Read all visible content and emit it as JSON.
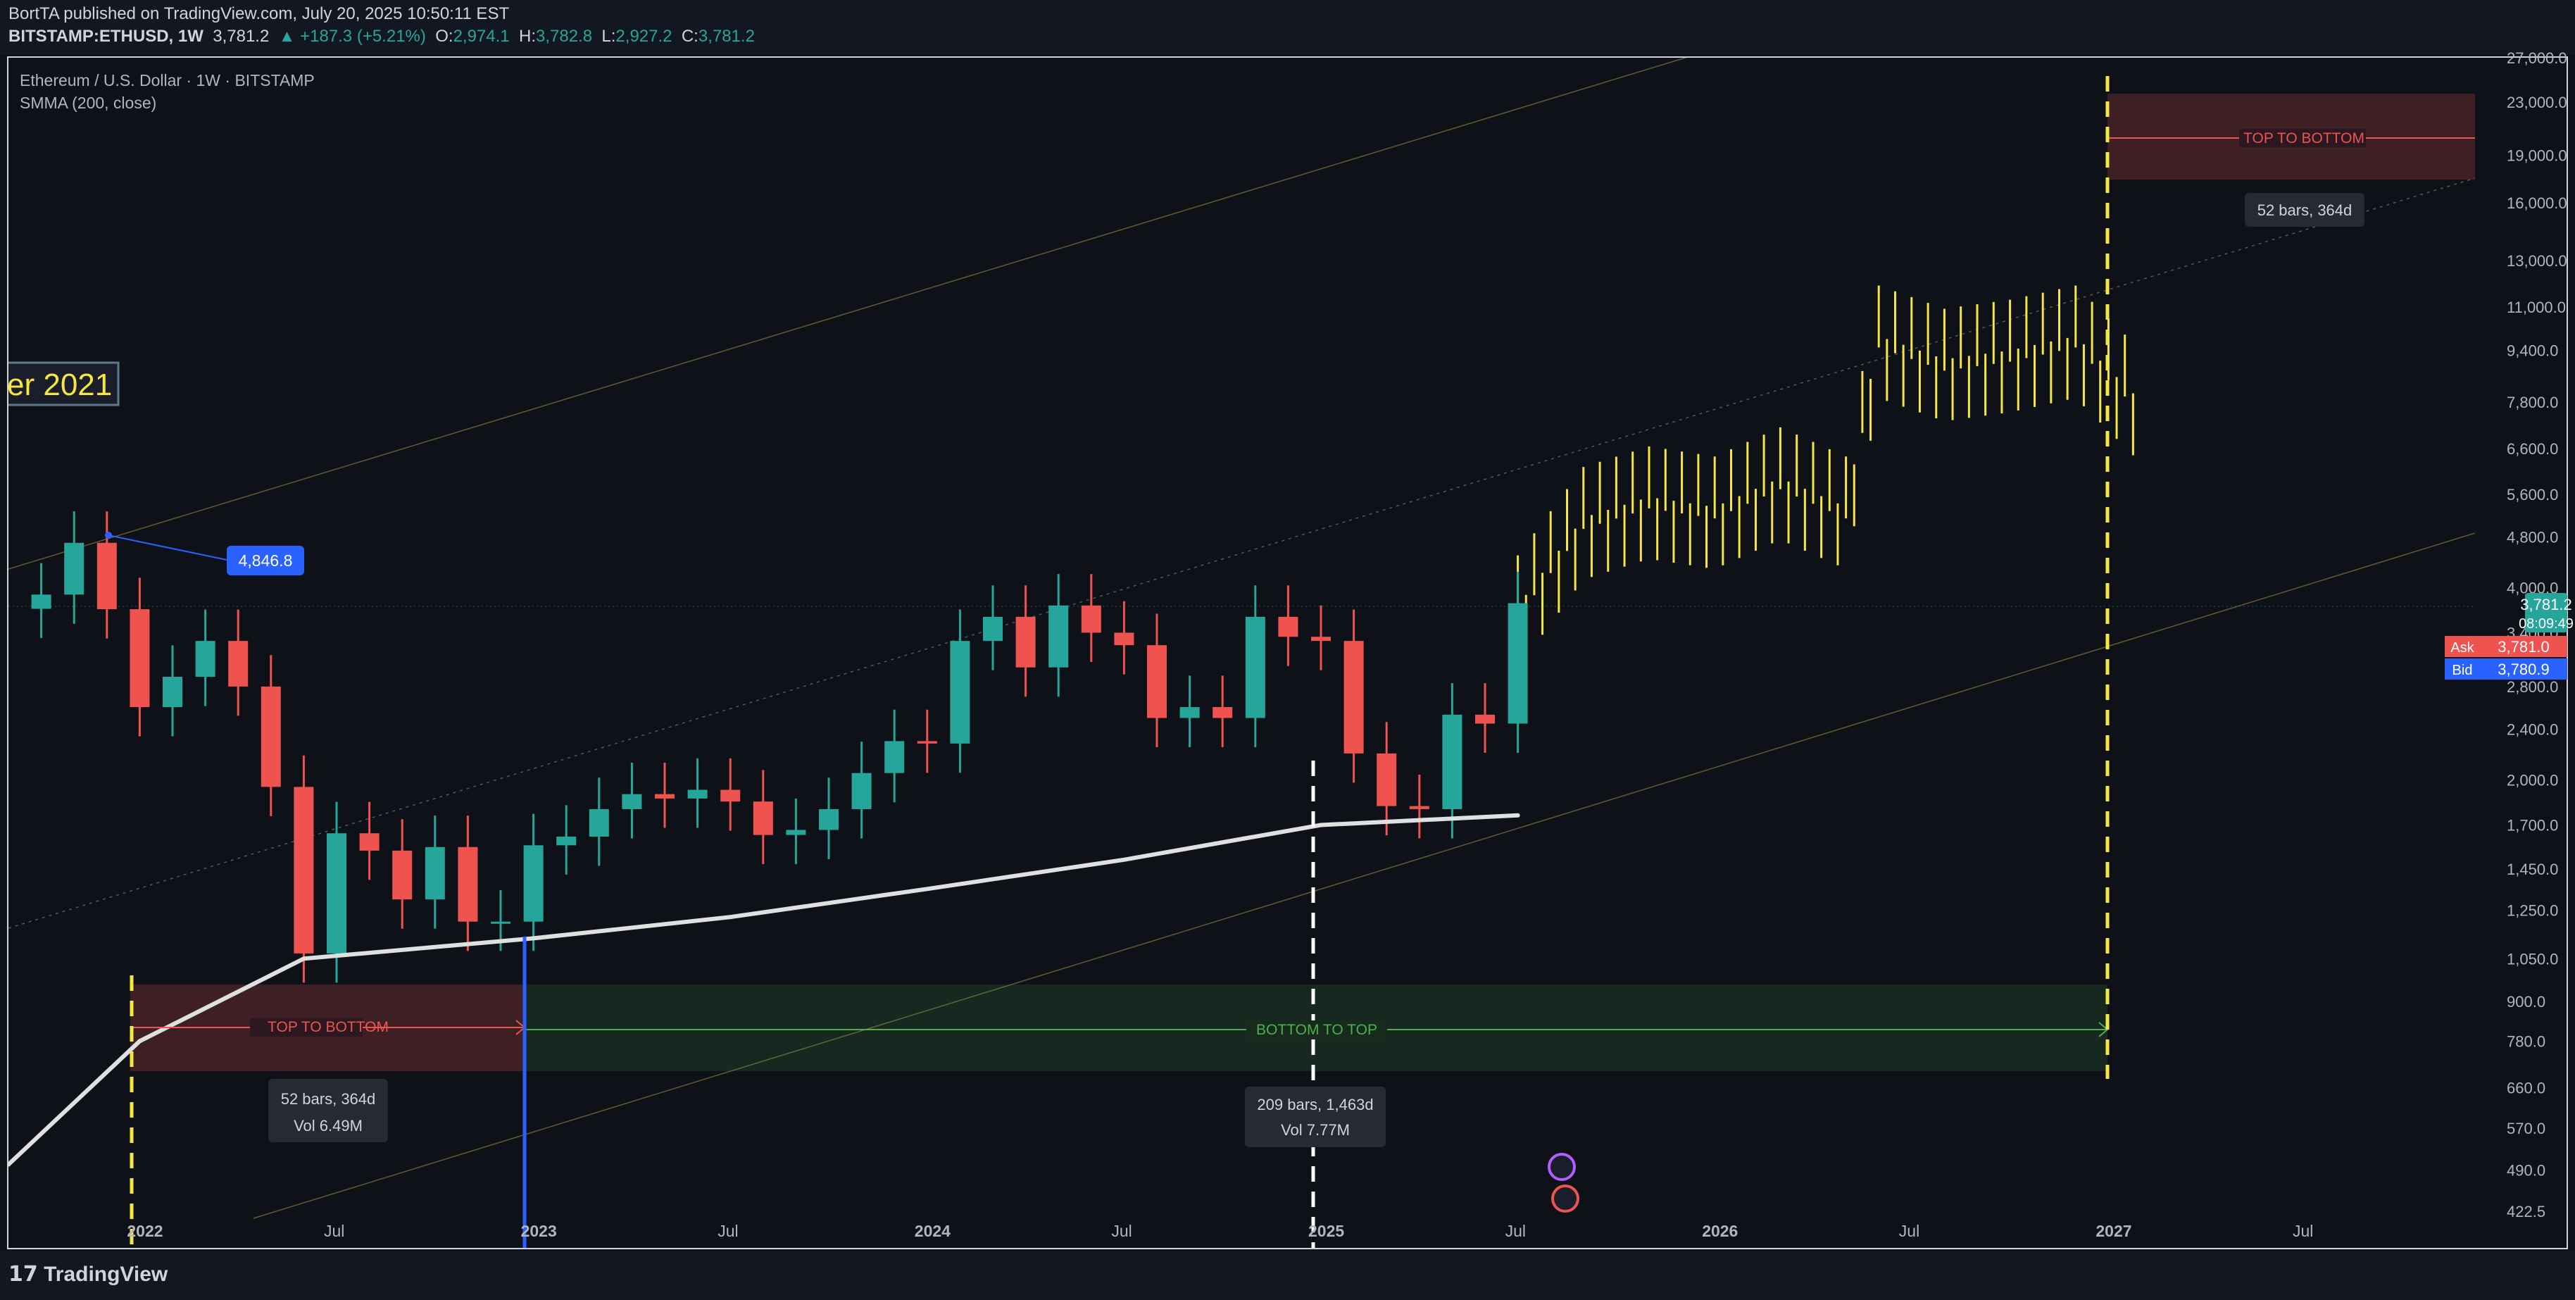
{
  "header": {
    "publisher_line": "BortTA published on TradingView.com, July 20, 2025 10:50:11 EST",
    "publisher": "BortTA",
    "symbol_line": "BITSTAMP:ETHUSD, 1W",
    "last": "3,781.2",
    "change": "+187.3 (+5.21%)",
    "O": "2,974.1",
    "H": "3,782.8",
    "L": "2,927.2",
    "C": "3,781.2"
  },
  "legend": {
    "title": "Ethereum / U.S. Dollar · 1W · BITSTAMP",
    "indicator": "SMMA (200, close)"
  },
  "annotations": {
    "december_label": "er 2021",
    "ath_label": "4,846.8",
    "top_to_bottom_1": "TOP TO BOTTOM",
    "top_to_bottom_2": "TOP TO BOTTOM",
    "bottom_to_top": "BOTTOM TO TOP",
    "range1_bars": "52 bars, 364d",
    "range1_vol": "Vol 6.49M",
    "range2_bars": "209 bars, 1,463d",
    "range2_vol": "Vol 7.77M",
    "range3_bars": "52 bars, 364d"
  },
  "price_axis": {
    "ticks": [
      "27,000.0",
      "23,000.0",
      "19,000.0",
      "16,000.0",
      "13,000.0",
      "11,000.0",
      "9,400.0",
      "7,800.0",
      "6,600.0",
      "5,600.0",
      "4,800.0",
      "4,000.0",
      "3,400.0",
      "2,800.0",
      "2,400.0",
      "2,000.0",
      "1,700.0",
      "1,450.0",
      "1,250.0",
      "1,050.0",
      "900.0",
      "780.0",
      "660.0",
      "570.0",
      "490.0",
      "422.5"
    ],
    "last_price": "3,781.2",
    "countdown": "08:09:49",
    "ask_label": "Ask",
    "ask": "3,781.0",
    "bid_label": "Bid",
    "bid": "3,780.9"
  },
  "time_axis": {
    "labels": [
      "2022",
      "Jul",
      "2023",
      "Jul",
      "2024",
      "Jul",
      "2025",
      "Jul",
      "2026",
      "Jul",
      "2027",
      "Jul"
    ]
  },
  "footer": {
    "brand": "TradingView"
  },
  "colors": {
    "up": "#26a69a",
    "down": "#ef5350",
    "projection": "#f5e642",
    "smma": "#e0e0e0",
    "accent": "#2962ff",
    "top_box": "#ef5350",
    "bottom_box": "#4caf50"
  },
  "chart_data": {
    "type": "candlestick",
    "scale": "log",
    "ylim": [
      422.5,
      27000
    ],
    "xlim": [
      "2021-09",
      "2027-10"
    ],
    "price_series": {
      "dates": [
        "2021-10",
        "2021-11",
        "2021-12",
        "2022-01",
        "2022-02",
        "2022-03",
        "2022-04",
        "2022-05",
        "2022-06",
        "2022-07",
        "2022-08",
        "2022-09",
        "2022-10",
        "2022-11",
        "2022-12",
        "2023-01",
        "2023-02",
        "2023-03",
        "2023-04",
        "2023-05",
        "2023-06",
        "2023-07",
        "2023-08",
        "2023-09",
        "2023-10",
        "2023-11",
        "2023-12",
        "2024-01",
        "2024-02",
        "2024-03",
        "2024-04",
        "2024-05",
        "2024-06",
        "2024-07",
        "2024-08",
        "2024-09",
        "2024-10",
        "2024-11",
        "2024-12",
        "2025-01",
        "2025-02",
        "2025-03",
        "2025-04",
        "2025-05",
        "2025-06",
        "2025-07"
      ],
      "close": [
        3900,
        4700,
        3700,
        2600,
        2900,
        3300,
        2800,
        1950,
        1070,
        1650,
        1550,
        1300,
        1570,
        1200,
        1200,
        1580,
        1630,
        1800,
        1900,
        1870,
        1930,
        1850,
        1640,
        1670,
        1800,
        2050,
        2300,
        2280,
        3300,
        3600,
        3000,
        3750,
        3400,
        3250,
        2500,
        2600,
        2500,
        3600,
        3350,
        3300,
        2200,
        1820,
        1800,
        2530,
        2450,
        3781
      ]
    },
    "projection_series": {
      "dates": [
        "2025-07",
        "2025-09",
        "2025-11",
        "2026-01",
        "2026-03",
        "2026-05",
        "2026-06",
        "2026-08",
        "2026-10",
        "2026-12",
        "2027-02"
      ],
      "close": [
        3781,
        5200,
        5600,
        5400,
        6000,
        5400,
        10000,
        9200,
        9500,
        10000,
        7900
      ]
    },
    "smma_200": {
      "dates": [
        "2021-09",
        "2022-01",
        "2022-06",
        "2023-01",
        "2023-07",
        "2024-01",
        "2024-07",
        "2025-01",
        "2025-07"
      ],
      "values": [
        500,
        780,
        1050,
        1130,
        1220,
        1350,
        1500,
        1700,
        1760
      ]
    },
    "ath": {
      "date": "2021-11",
      "value": 4846.8
    },
    "ranges": [
      {
        "label": "TOP TO BOTTOM",
        "from": "2021-11",
        "to": "2022-12",
        "bars": 52,
        "days": 364,
        "volume": "6.49M"
      },
      {
        "label": "BOTTOM TO TOP",
        "from": "2022-12",
        "to": "2026-12",
        "bars": 209,
        "days": 1463,
        "volume": "7.77M"
      },
      {
        "label": "TOP TO BOTTOM",
        "from": "2026-12",
        "to": "2027-12",
        "bars": 52,
        "days": 364
      }
    ],
    "cycle_markers": [
      "2021-11",
      "2022-12",
      "2024-12",
      "2026-12"
    ]
  }
}
